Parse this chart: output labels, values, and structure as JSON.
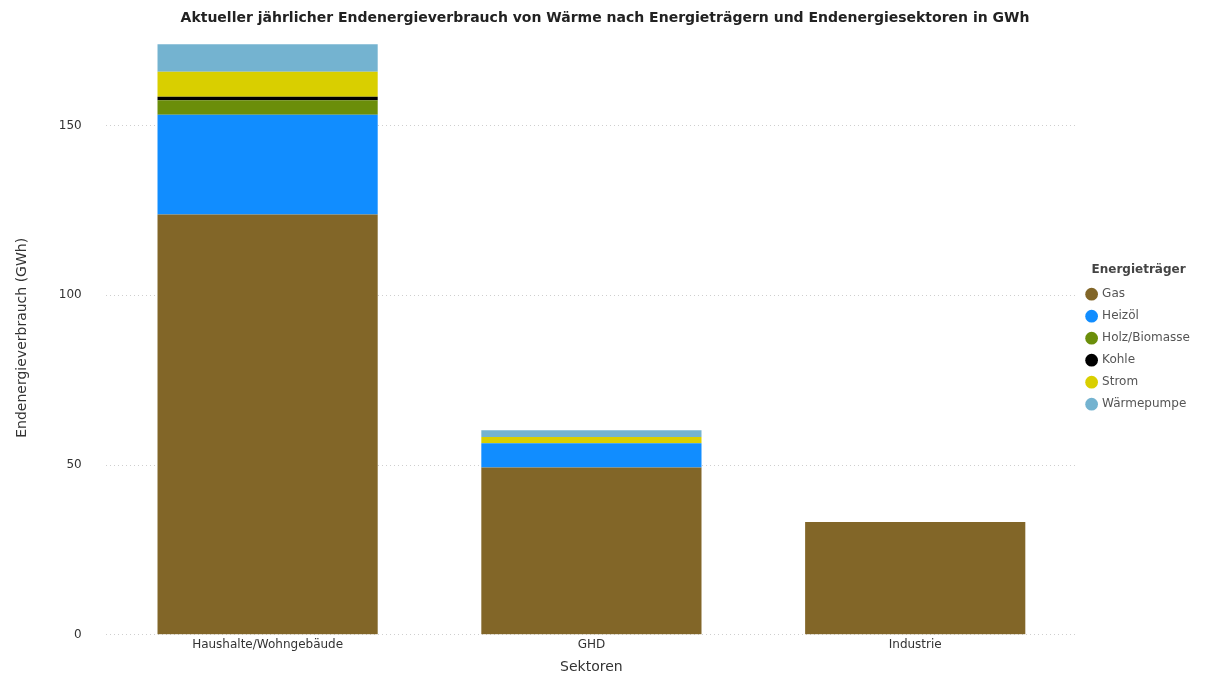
{
  "chart_data": {
    "type": "bar",
    "title": "Aktueller jährlicher Endenergieverbrauch von Wärme nach Energieträgern und Endenergiesektoren in GWh",
    "xlabel": "Sektoren",
    "ylabel": "Endenergieverbrauch (GWh)",
    "legend_title": "Energieträger",
    "categories": [
      "Haushalte/Wohngebäude",
      "GHD",
      "Industrie"
    ],
    "stacked": true,
    "series": [
      {
        "name": "Gas",
        "color": "#826628",
        "values": [
          123.8,
          49.3,
          33.2
        ]
      },
      {
        "name": "Heizöl",
        "color": "#118dff",
        "values": [
          29.4,
          7.1,
          0
        ]
      },
      {
        "name": "Holz/Biomasse",
        "color": "#6b8e0a",
        "values": [
          4.3,
          0,
          0
        ]
      },
      {
        "name": "Kohle",
        "color": "#000000",
        "values": [
          1.0,
          0,
          0
        ]
      },
      {
        "name": "Strom",
        "color": "#d9cf00",
        "values": [
          7.4,
          1.9,
          0
        ]
      },
      {
        "name": "Wärmepumpe",
        "color": "#74b3d0",
        "values": [
          8.1,
          2.0,
          0
        ]
      }
    ],
    "ylim": [
      0,
      175
    ],
    "yticks": [
      0,
      50,
      100,
      150
    ],
    "grid": "y",
    "legend": "right"
  }
}
